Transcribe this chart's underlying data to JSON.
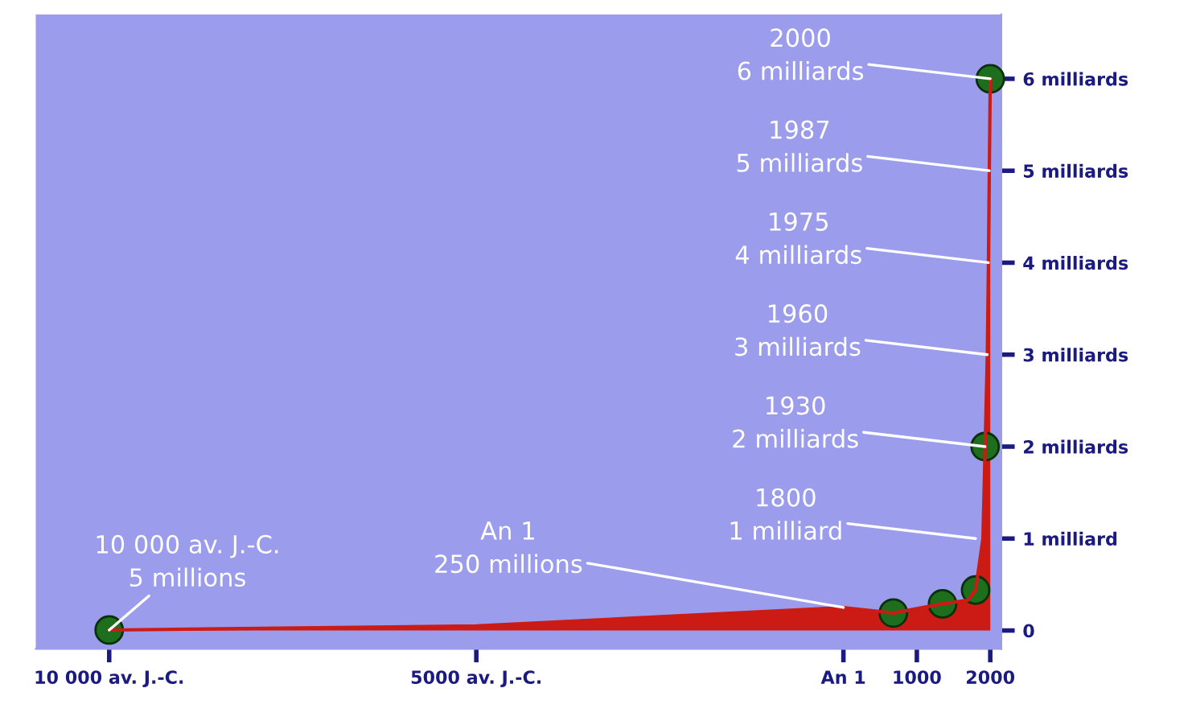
{
  "chart_data": {
    "type": "area",
    "xlim": [
      -11000,
      2150
    ],
    "ylim": [
      -0.2,
      6.7
    ],
    "xticks": [
      {
        "value": -10000,
        "label": "10 000 av. J.-C."
      },
      {
        "value": -5000,
        "label": "5000 av. J.-C."
      },
      {
        "value": 0,
        "label": "An 1"
      },
      1000,
      2000
    ],
    "yticks": [
      0,
      {
        "value": 1,
        "label": "1 milliard"
      },
      {
        "value": 2,
        "label": "2 milliards"
      },
      {
        "value": 3,
        "label": "3 milliards"
      },
      {
        "value": 4,
        "label": "4 milliards"
      },
      {
        "value": 5,
        "label": "5 milliards"
      },
      {
        "value": 6,
        "label": "6 milliards"
      }
    ],
    "grid": false,
    "legend": false,
    "series": [
      {
        "color": "#cc1a14",
        "x": [
          -10000,
          -5000,
          0,
          680,
          1350,
          1700,
          1800,
          1900,
          1930,
          1960,
          1975,
          1987,
          2000
        ],
        "values": [
          0.005,
          0.05,
          0.25,
          0.19,
          0.29,
          0.33,
          0.44,
          1,
          2,
          3,
          4,
          5,
          6
        ]
      },
      {
        "type": "scatter",
        "color": "#1d6e1d",
        "marker": "circle",
        "x": [
          -10000,
          680,
          1350,
          1800,
          1930,
          2000
        ],
        "values": [
          0.005,
          0.19,
          0.29,
          0.44,
          2,
          6
        ]
      }
    ],
    "annotations": [
      {
        "text": "10 000 av. J.-C.\n5 millions",
        "x": -10000,
        "y": 0.005
      },
      {
        "text": "An 1\n250 millions",
        "x": 0,
        "y": 0.25
      },
      {
        "text": "1800\n1 milliard",
        "x": 1800,
        "y": 1
      },
      {
        "text": "1930\n2 milliards",
        "x": 1930,
        "y": 2
      },
      {
        "text": "1960\n3 milliards",
        "x": 1960,
        "y": 3
      },
      {
        "text": "1975\n4 milliards",
        "x": 1975,
        "y": 4
      },
      {
        "text": "1987\n5 milliards",
        "x": 1987,
        "y": 5
      },
      {
        "text": "2000\n6 milliards",
        "x": 2000,
        "y": 6
      }
    ]
  }
}
